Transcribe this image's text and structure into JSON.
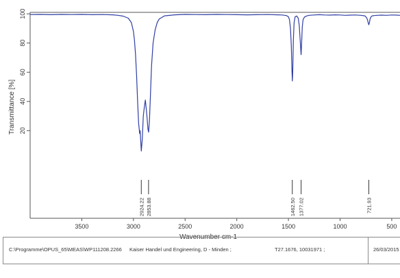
{
  "chart_data": {
    "type": "line",
    "title": "",
    "xlabel": "Wavenumber cm-1",
    "ylabel": "Transmittance [%]",
    "xlim": [
      4000,
      420
    ],
    "ylim": [
      -40,
      101
    ],
    "x_ticks": [
      3500,
      3000,
      2500,
      2000,
      1500,
      1000,
      500
    ],
    "x_tick_labels": [
      "3500",
      "3000",
      "2500",
      "2000",
      "1500",
      "1000",
      "500"
    ],
    "y_ticks": [
      20,
      40,
      60,
      80,
      100
    ],
    "y_tick_labels": [
      "20",
      "40",
      "60",
      "80",
      "100"
    ],
    "grid": false,
    "line_color": "#2e3da3",
    "series": [
      {
        "x": [
          4000,
          3900,
          3800,
          3700,
          3600,
          3500,
          3400,
          3300,
          3200,
          3150,
          3100,
          3050,
          3020,
          3000,
          2990,
          2980,
          2970,
          2960,
          2950,
          2940,
          2935,
          2924,
          2915,
          2905,
          2895,
          2885,
          2875,
          2868,
          2860,
          2853,
          2845,
          2835,
          2825,
          2810,
          2790,
          2770,
          2750,
          2700,
          2600,
          2500,
          2400,
          2300,
          2200,
          2100,
          2000,
          1900,
          1800,
          1700,
          1600,
          1560,
          1520,
          1500,
          1490,
          1480,
          1472,
          1466,
          1462,
          1458,
          1452,
          1445,
          1435,
          1420,
          1405,
          1395,
          1388,
          1382,
          1377,
          1372,
          1366,
          1358,
          1345,
          1320,
          1300,
          1250,
          1200,
          1150,
          1100,
          1050,
          1000,
          950,
          900,
          850,
          800,
          760,
          745,
          735,
          728,
          722,
          716,
          710,
          700,
          690,
          670,
          640,
          600,
          550,
          500,
          450,
          420
        ],
        "y": [
          99.5,
          99.6,
          99.4,
          99.6,
          99.5,
          99.6,
          99.4,
          99.5,
          99.3,
          99.0,
          98.4,
          97.0,
          94.0,
          88.0,
          82.0,
          72.0,
          58.0,
          40.0,
          25.0,
          18.0,
          20.0,
          6.0,
          14.0,
          30.0,
          36.0,
          41.0,
          34.0,
          29.0,
          21.0,
          19.0,
          27.0,
          45.0,
          64.0,
          80.0,
          89.0,
          94.0,
          96.5,
          98.6,
          99.3,
          99.6,
          99.5,
          99.4,
          99.6,
          99.5,
          99.4,
          99.3,
          99.4,
          99.5,
          99.3,
          99.2,
          98.8,
          98.0,
          96.0,
          90.0,
          78.0,
          62.0,
          54.0,
          60.0,
          82.0,
          94.0,
          98.0,
          98.5,
          97.0,
          92.0,
          84.0,
          77.0,
          72.0,
          80.0,
          91.0,
          96.0,
          97.8,
          98.6,
          99.0,
          99.2,
          99.4,
          99.2,
          99.1,
          99.3,
          99.2,
          99.0,
          99.1,
          99.2,
          99.0,
          98.6,
          97.5,
          96.0,
          94.0,
          92.5,
          94.0,
          96.5,
          98.0,
          98.6,
          98.8,
          99.0,
          99.1,
          99.0,
          99.2,
          99.1,
          99.0
        ]
      }
    ],
    "peak_labels": [
      {
        "x": 2924.22,
        "text": "2924.22"
      },
      {
        "x": 2853.88,
        "text": "2853.88"
      },
      {
        "x": 1462.5,
        "text": "1462.50"
      },
      {
        "x": 1377.02,
        "text": "1377.02"
      },
      {
        "x": 721.93,
        "text": "721.93"
      }
    ]
  },
  "footer": {
    "path": "C:\\Programme\\OPUS_65\\MEAS\\WP111208.2266",
    "company": "Kaiser Handel und Engineering, D - Minden ;",
    "code": "T27.1676, 10031971 ;",
    "date": "26/03/2015"
  }
}
